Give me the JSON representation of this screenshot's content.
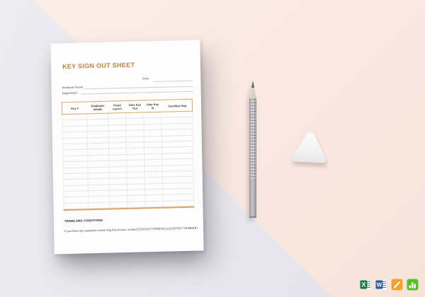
{
  "scene": {
    "background_pink": "#f9e8e1",
    "background_gray": "#e9e9ee"
  },
  "document": {
    "title": "KEY SIGN OUT SHEET",
    "title_color": "#c2803a",
    "date_label": "Date:",
    "employee_name_label": "Employee Name:",
    "department_label": "Department:",
    "table": {
      "border_color": "#d9a668",
      "headers": [
        "Key #",
        "Employee Initials",
        "Floor/ room #",
        "Date Key Out",
        "Date Key In",
        "Facilities Rep"
      ],
      "empty_rows": 16
    },
    "terms_heading": "TERMS AND CONDITIONS",
    "terms_body": "If you have any questions concerning this invoice, contact [CONTACT PERSON] at  [CONTACT NUMBER] ."
  },
  "footer_icons": [
    {
      "name": "excel",
      "letter": "X",
      "color": "#1e7145"
    },
    {
      "name": "word",
      "letter": "W",
      "color": "#2b5797"
    },
    {
      "name": "pages",
      "color": "#f7a02c"
    },
    {
      "name": "numbers",
      "color": "#58c024"
    }
  ]
}
